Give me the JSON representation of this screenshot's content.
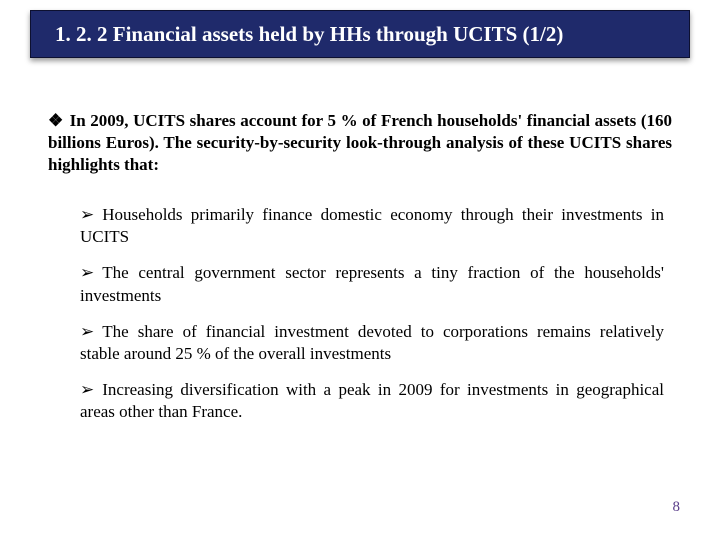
{
  "slide": {
    "title": "1. 2. 2 Financial assets held by HHs through UCITS (1/2)",
    "intro": "In 2009, UCITS shares account for 5 % of  French households' financial assets (160 billions Euros). The security-by-security look-through analysis of these UCITS shares highlights that:",
    "bullets": [
      "Households primarily finance domestic economy through their investments in UCITS",
      "The central government sector represents a tiny fraction of the households' investments",
      "The share of financial investment devoted to  corporations remains relatively stable around 25 % of the overall investments",
      "Increasing diversification with a peak in 2009 for investments in geographical areas other than France."
    ],
    "page_number": "8",
    "colors": {
      "title_bg": "#1f2a6b",
      "title_text": "#ffffff",
      "body_text": "#000000",
      "page_num": "#5a3d8a",
      "slide_bg": "#ffffff"
    }
  }
}
